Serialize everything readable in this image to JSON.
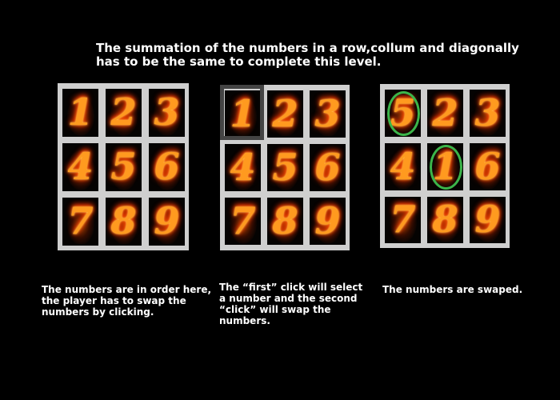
{
  "level": {
    "instruction_line1": "The summation of the numbers in a row,collum and diagonally",
    "instruction_line2": "has to be the same to complete this level."
  },
  "colors": {
    "background": "#000000",
    "board": "#cfcfcf",
    "selection_frame": "#444444",
    "swap_ring": "#3bb54a",
    "fire_number": "#ff9a1f"
  },
  "panels": [
    {
      "tiles": [
        "1",
        "2",
        "3",
        "4",
        "5",
        "6",
        "7",
        "8",
        "9"
      ],
      "selected_tile_index": null,
      "swapped_tile_indices": [],
      "caption_lines": [
        "The numbers are in order here,",
        "the player has to swap the",
        "numbers by clicking."
      ]
    },
    {
      "tiles": [
        "1",
        "2",
        "3",
        "4",
        "5",
        "6",
        "7",
        "8",
        "9"
      ],
      "selected_tile_index": 0,
      "swapped_tile_indices": [],
      "caption_lines": [
        "The “first” click will select",
        "a number and the second",
        "“click” will swap the",
        "numbers."
      ]
    },
    {
      "tiles": [
        "5",
        "2",
        "3",
        "4",
        "1",
        "6",
        "7",
        "8",
        "9"
      ],
      "selected_tile_index": null,
      "swapped_tile_indices": [
        0,
        4
      ],
      "caption_lines": [
        "The numbers are swaped."
      ]
    }
  ]
}
